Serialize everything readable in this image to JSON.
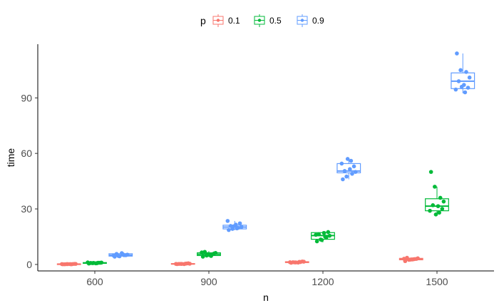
{
  "chart_data": {
    "type": "box",
    "xlabel": "n",
    "ylabel": "time",
    "categories": [
      "600",
      "900",
      "1200",
      "1500"
    ],
    "ylim": [
      -3.5,
      119
    ],
    "yticks": [
      0,
      30,
      60,
      90
    ],
    "grid": false,
    "legend": {
      "title": "p",
      "position": "top"
    },
    "series": [
      {
        "name": "0.1",
        "color": "#F8766D",
        "boxes": [
          {
            "category": "600",
            "min": 0.0,
            "q1": 0.1,
            "median": 0.2,
            "q3": 0.3,
            "max": 0.4,
            "points": [
              0.1,
              0.2,
              0.2,
              0.3,
              0.1,
              0.2,
              0.3,
              0.2,
              0.1,
              0.2
            ]
          },
          {
            "category": "900",
            "min": 0.1,
            "q1": 0.2,
            "median": 0.3,
            "q3": 0.5,
            "max": 0.7,
            "points": [
              0.2,
              0.3,
              0.5,
              0.4,
              0.3,
              0.2,
              0.6,
              0.3,
              0.4,
              0.3
            ]
          },
          {
            "category": "1200",
            "min": 0.8,
            "q1": 1.0,
            "median": 1.2,
            "q3": 1.5,
            "max": 1.7,
            "points": [
              0.9,
              1.1,
              1.3,
              1.5,
              1.2,
              1.0,
              1.6,
              1.2,
              1.4,
              1.1
            ]
          },
          {
            "category": "1500",
            "min": 1.6,
            "q1": 2.5,
            "median": 2.9,
            "q3": 3.3,
            "max": 3.9,
            "points": [
              1.8,
              2.5,
              2.9,
              3.3,
              3.6,
              2.7,
              3.0,
              3.1,
              2.8,
              2.6
            ]
          }
        ]
      },
      {
        "name": "0.5",
        "color": "#00BA38",
        "boxes": [
          {
            "category": "600",
            "min": 0.3,
            "q1": 0.6,
            "median": 0.8,
            "q3": 1.0,
            "max": 1.2,
            "points": [
              0.5,
              0.7,
              0.9,
              1.0,
              0.8,
              0.6,
              0.9,
              1.1,
              0.7,
              0.8
            ]
          },
          {
            "category": "900",
            "min": 4.0,
            "q1": 4.8,
            "median": 5.5,
            "q3": 6.3,
            "max": 7.2,
            "points": [
              4.2,
              4.8,
              5.5,
              6.2,
              6.8,
              5.1,
              5.9,
              6.5,
              4.6,
              5.6
            ]
          },
          {
            "category": "1200",
            "min": 12.0,
            "q1": 13.6,
            "median": 15.6,
            "q3": 17.2,
            "max": 18.0,
            "points": [
              12.5,
              13.5,
              14.5,
              15.5,
              16.3,
              17.0,
              17.5,
              16.0,
              15.0,
              13.2
            ]
          },
          {
            "category": "1500",
            "min": 26.5,
            "q1": 29.0,
            "median": 31.5,
            "q3": 35.5,
            "max": 42.0,
            "points": [
              50.0,
              42.0,
              36.0,
              34.0,
              32.0,
              31.5,
              30.0,
              29.0,
              28.0,
              27.0
            ]
          }
        ]
      },
      {
        "name": "0.9",
        "color": "#619CFF",
        "boxes": [
          {
            "category": "600",
            "min": 4.0,
            "q1": 4.5,
            "median": 5.0,
            "q3": 5.8,
            "max": 6.3,
            "points": [
              4.2,
              4.6,
              5.0,
              5.3,
              5.7,
              6.1,
              5.0,
              4.8,
              5.5,
              4.4
            ]
          },
          {
            "category": "900",
            "min": 18.5,
            "q1": 19.2,
            "median": 20.2,
            "q3": 21.2,
            "max": 23.5,
            "points": [
              18.6,
              19.2,
              19.8,
              20.3,
              20.8,
              21.5,
              22.2,
              23.5,
              19.5,
              20.6
            ]
          },
          {
            "category": "1200",
            "min": 46.0,
            "q1": 49.5,
            "median": 50.5,
            "q3": 54.5,
            "max": 57.0,
            "points": [
              46.0,
              47.5,
              49.0,
              50.0,
              50.5,
              51.5,
              53.0,
              54.5,
              56.0,
              57.0
            ]
          },
          {
            "category": "1500",
            "min": 92.5,
            "q1": 95.0,
            "median": 99.0,
            "q3": 103.5,
            "max": 114.0,
            "points": [
              114.0,
              105.0,
              104.0,
              101.0,
              99.0,
              97.0,
              95.5,
              94.5,
              93.0,
              96.0
            ]
          }
        ]
      }
    ]
  }
}
